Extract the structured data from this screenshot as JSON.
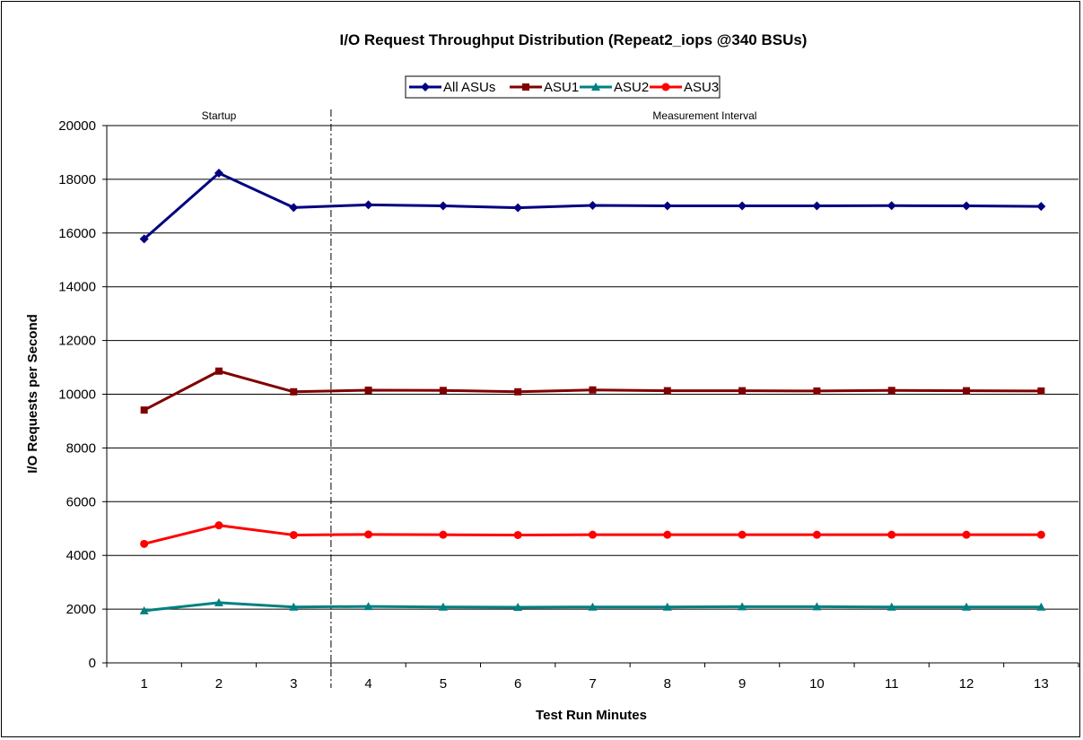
{
  "chart_data": {
    "type": "line",
    "title": "I/O Request Throughput Distribution (Repeat2_iops @340 BSUs)",
    "xlabel": "Test Run Minutes",
    "ylabel": "I/O Requests per Second",
    "x": [
      1,
      2,
      3,
      4,
      5,
      6,
      7,
      8,
      9,
      10,
      11,
      12,
      13
    ],
    "ylim": [
      0,
      20000
    ],
    "yticks": [
      0,
      2000,
      4000,
      6000,
      8000,
      10000,
      12000,
      14000,
      16000,
      18000,
      20000
    ],
    "grid": "horizontal",
    "legend_position": "top-center",
    "series": [
      {
        "name": "All ASUs",
        "color": "#000080",
        "marker": "diamond",
        "values": [
          15780,
          18230,
          16950,
          17050,
          17010,
          16940,
          17030,
          17010,
          17010,
          17010,
          17020,
          17010,
          16990
        ]
      },
      {
        "name": "ASU1",
        "color": "#800000",
        "marker": "square",
        "values": [
          9410,
          10860,
          10090,
          10150,
          10140,
          10090,
          10160,
          10130,
          10130,
          10120,
          10140,
          10130,
          10120
        ]
      },
      {
        "name": "ASU2",
        "color": "#008080",
        "marker": "triangle",
        "values": [
          1940,
          2240,
          2080,
          2100,
          2080,
          2070,
          2080,
          2080,
          2090,
          2090,
          2080,
          2080,
          2080
        ]
      },
      {
        "name": "ASU3",
        "color": "#FF0000",
        "marker": "circle",
        "values": [
          4430,
          5120,
          4760,
          4780,
          4770,
          4760,
          4770,
          4770,
          4770,
          4770,
          4770,
          4770,
          4770
        ]
      }
    ],
    "annotations": {
      "divider_after_x": 3.5,
      "startup_label": "Startup",
      "measurement_label": "Measurement Interval"
    }
  }
}
